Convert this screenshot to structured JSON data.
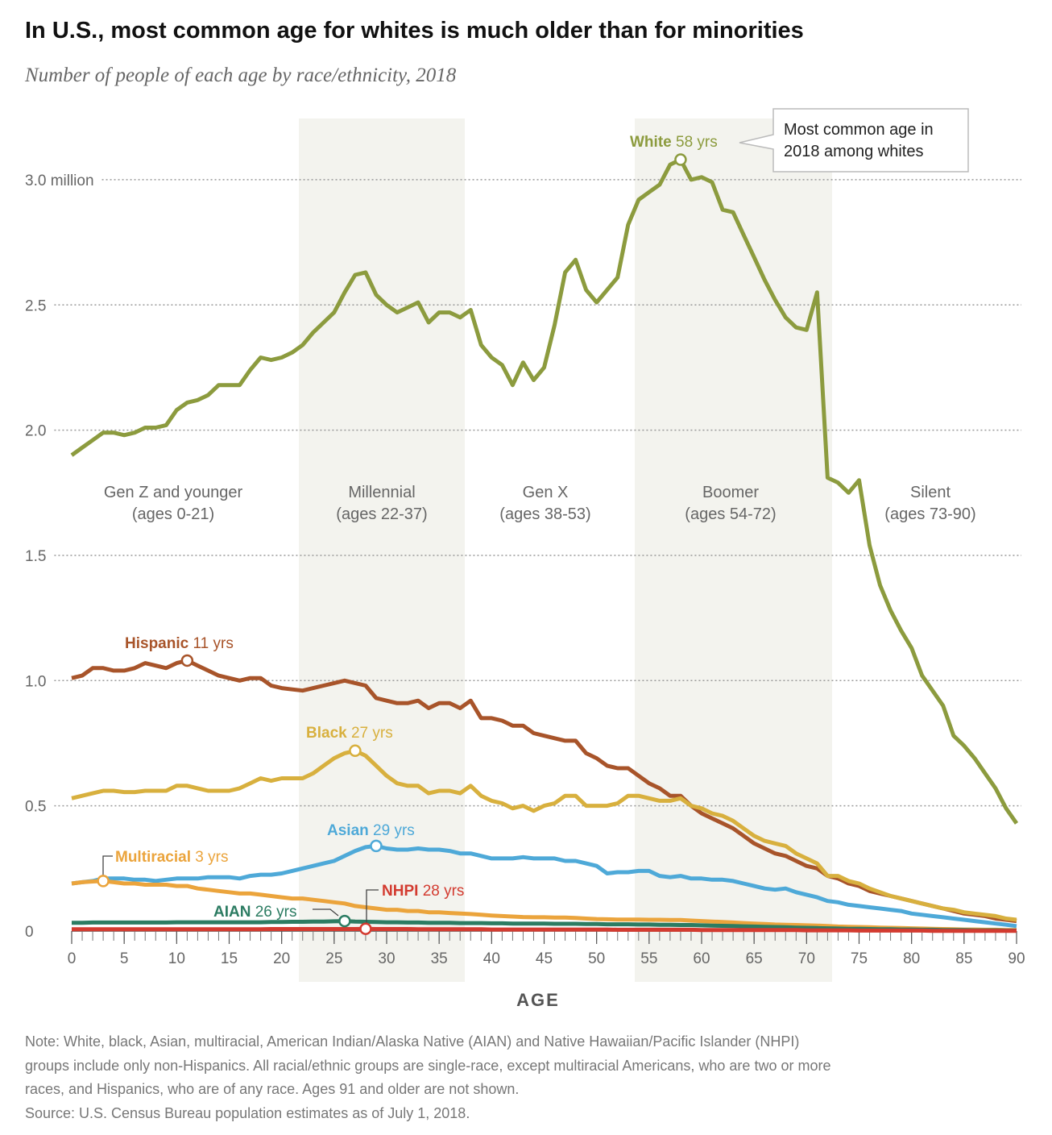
{
  "title": "In U.S., most common age for whites is much older than for minorities",
  "subtitle": "Number of people of each age by race/ethnicity, 2018",
  "chart_data": {
    "type": "line",
    "xlabel": "AGE",
    "xlim": [
      0,
      90
    ],
    "ylim": [
      0,
      3.25
    ],
    "xticks": [
      0,
      5,
      10,
      15,
      20,
      25,
      30,
      35,
      40,
      45,
      50,
      55,
      60,
      65,
      70,
      75,
      80,
      85,
      90
    ],
    "yticks": [
      0,
      0.5,
      {
        "value": 1,
        "label": "1.0"
      },
      1.5,
      {
        "value": 2,
        "label": "2.0"
      },
      2.5,
      {
        "value": 3,
        "label": "3.0 million"
      }
    ],
    "grid": true,
    "x": [
      0,
      1,
      2,
      3,
      4,
      5,
      6,
      7,
      8,
      9,
      10,
      11,
      12,
      13,
      14,
      15,
      16,
      17,
      18,
      19,
      20,
      21,
      22,
      23,
      24,
      25,
      26,
      27,
      28,
      29,
      30,
      31,
      32,
      33,
      34,
      35,
      36,
      37,
      38,
      39,
      40,
      41,
      42,
      43,
      44,
      45,
      46,
      47,
      48,
      49,
      50,
      51,
      52,
      53,
      54,
      55,
      56,
      57,
      58,
      59,
      60,
      61,
      62,
      63,
      64,
      65,
      66,
      67,
      68,
      69,
      70,
      71,
      72,
      73,
      74,
      75,
      76,
      77,
      78,
      79,
      80,
      81,
      82,
      83,
      84,
      85,
      86,
      87,
      88,
      89,
      90
    ],
    "generations": [
      {
        "name": "Gen Z and younger",
        "ages": "(ages 0-21)"
      },
      {
        "name": "Millennial",
        "ages": "(ages 22-37)"
      },
      {
        "name": "Gen X",
        "ages": "(ages 38-53)"
      },
      {
        "name": "Boomer",
        "ages": "(ages 54-72)"
      },
      {
        "name": "Silent",
        "ages": "(ages 73-90)"
      }
    ],
    "callout": [
      "Most common age in",
      "2018 among whites"
    ],
    "series": [
      {
        "name": "White",
        "color": "#8c9b3e",
        "peak": {
          "age": 58,
          "label": "58 yrs"
        },
        "values": [
          1.9,
          1.93,
          1.96,
          1.99,
          1.99,
          1.98,
          1.99,
          2.01,
          2.01,
          2.02,
          2.08,
          2.11,
          2.12,
          2.14,
          2.18,
          2.18,
          2.18,
          2.24,
          2.29,
          2.28,
          2.29,
          2.31,
          2.34,
          2.39,
          2.43,
          2.47,
          2.55,
          2.62,
          2.63,
          2.54,
          2.5,
          2.47,
          2.49,
          2.51,
          2.43,
          2.47,
          2.47,
          2.45,
          2.48,
          2.34,
          2.29,
          2.26,
          2.18,
          2.27,
          2.2,
          2.25,
          2.42,
          2.63,
          2.68,
          2.56,
          2.51,
          2.56,
          2.61,
          2.82,
          2.92,
          2.95,
          2.98,
          3.06,
          3.08,
          3.0,
          3.01,
          2.99,
          2.88,
          2.87,
          2.78,
          2.69,
          2.6,
          2.52,
          2.45,
          2.41,
          2.4,
          2.55,
          1.81,
          1.79,
          1.75,
          1.8,
          1.54,
          1.38,
          1.28,
          1.2,
          1.13,
          1.02,
          0.96,
          0.9,
          0.78,
          0.74,
          0.69,
          0.63,
          0.57,
          0.49,
          0.43
        ]
      },
      {
        "name": "Hispanic",
        "color": "#a8542a",
        "peak": {
          "age": 11,
          "label": "11 yrs"
        },
        "values": [
          1.01,
          1.02,
          1.05,
          1.05,
          1.04,
          1.04,
          1.05,
          1.07,
          1.06,
          1.05,
          1.07,
          1.08,
          1.06,
          1.04,
          1.02,
          1.01,
          1.0,
          1.01,
          1.01,
          0.98,
          0.97,
          0.965,
          0.96,
          0.97,
          0.98,
          0.99,
          1.0,
          0.99,
          0.98,
          0.93,
          0.92,
          0.91,
          0.91,
          0.92,
          0.89,
          0.91,
          0.91,
          0.89,
          0.92,
          0.85,
          0.85,
          0.84,
          0.82,
          0.82,
          0.79,
          0.78,
          0.77,
          0.76,
          0.76,
          0.71,
          0.69,
          0.66,
          0.65,
          0.65,
          0.62,
          0.59,
          0.57,
          0.54,
          0.54,
          0.5,
          0.47,
          0.45,
          0.43,
          0.41,
          0.38,
          0.35,
          0.33,
          0.31,
          0.3,
          0.28,
          0.26,
          0.25,
          0.22,
          0.21,
          0.19,
          0.18,
          0.16,
          0.15,
          0.14,
          0.13,
          0.12,
          0.11,
          0.1,
          0.09,
          0.08,
          0.07,
          0.065,
          0.06,
          0.05,
          0.045,
          0.04
        ]
      },
      {
        "name": "Black",
        "color": "#d8b03e",
        "peak": {
          "age": 27,
          "label": "27 yrs"
        },
        "values": [
          0.53,
          0.54,
          0.55,
          0.56,
          0.56,
          0.555,
          0.555,
          0.56,
          0.56,
          0.56,
          0.58,
          0.58,
          0.57,
          0.56,
          0.56,
          0.56,
          0.57,
          0.59,
          0.61,
          0.6,
          0.61,
          0.61,
          0.61,
          0.63,
          0.66,
          0.69,
          0.71,
          0.72,
          0.7,
          0.66,
          0.62,
          0.59,
          0.58,
          0.58,
          0.55,
          0.56,
          0.56,
          0.55,
          0.58,
          0.54,
          0.52,
          0.51,
          0.49,
          0.5,
          0.48,
          0.5,
          0.51,
          0.54,
          0.54,
          0.5,
          0.5,
          0.5,
          0.51,
          0.54,
          0.54,
          0.53,
          0.52,
          0.52,
          0.53,
          0.5,
          0.49,
          0.47,
          0.46,
          0.44,
          0.41,
          0.38,
          0.36,
          0.35,
          0.34,
          0.31,
          0.29,
          0.27,
          0.22,
          0.22,
          0.2,
          0.19,
          0.17,
          0.155,
          0.14,
          0.13,
          0.12,
          0.11,
          0.1,
          0.09,
          0.085,
          0.075,
          0.07,
          0.065,
          0.06,
          0.05,
          0.045
        ]
      },
      {
        "name": "Asian",
        "color": "#4ea9d8",
        "peak": {
          "age": 29,
          "label": "29 yrs"
        },
        "values": [
          0.19,
          0.195,
          0.2,
          0.21,
          0.21,
          0.21,
          0.205,
          0.205,
          0.2,
          0.205,
          0.21,
          0.21,
          0.21,
          0.215,
          0.215,
          0.215,
          0.21,
          0.22,
          0.225,
          0.225,
          0.23,
          0.24,
          0.25,
          0.26,
          0.27,
          0.28,
          0.3,
          0.32,
          0.335,
          0.34,
          0.33,
          0.325,
          0.325,
          0.33,
          0.325,
          0.325,
          0.32,
          0.31,
          0.31,
          0.3,
          0.29,
          0.29,
          0.29,
          0.295,
          0.29,
          0.29,
          0.29,
          0.28,
          0.28,
          0.27,
          0.26,
          0.23,
          0.235,
          0.235,
          0.24,
          0.24,
          0.22,
          0.215,
          0.22,
          0.21,
          0.21,
          0.205,
          0.205,
          0.2,
          0.19,
          0.18,
          0.17,
          0.165,
          0.17,
          0.155,
          0.145,
          0.135,
          0.12,
          0.115,
          0.105,
          0.1,
          0.095,
          0.09,
          0.085,
          0.08,
          0.07,
          0.065,
          0.06,
          0.055,
          0.05,
          0.045,
          0.04,
          0.035,
          0.03,
          0.025,
          0.02
        ]
      },
      {
        "name": "Multiracial",
        "color": "#eba43c",
        "peak": {
          "age": 3,
          "label": "3 yrs"
        },
        "values": [
          0.19,
          0.195,
          0.198,
          0.2,
          0.195,
          0.19,
          0.19,
          0.185,
          0.185,
          0.185,
          0.18,
          0.18,
          0.17,
          0.165,
          0.16,
          0.155,
          0.15,
          0.15,
          0.145,
          0.14,
          0.135,
          0.13,
          0.13,
          0.125,
          0.12,
          0.115,
          0.11,
          0.1,
          0.095,
          0.09,
          0.085,
          0.085,
          0.08,
          0.08,
          0.075,
          0.075,
          0.072,
          0.07,
          0.068,
          0.065,
          0.062,
          0.06,
          0.058,
          0.056,
          0.055,
          0.055,
          0.054,
          0.054,
          0.052,
          0.05,
          0.048,
          0.047,
          0.046,
          0.046,
          0.046,
          0.045,
          0.045,
          0.044,
          0.044,
          0.042,
          0.04,
          0.038,
          0.036,
          0.034,
          0.032,
          0.03,
          0.028,
          0.026,
          0.025,
          0.024,
          0.023,
          0.022,
          0.02,
          0.018,
          0.017,
          0.016,
          0.015,
          0.014,
          0.013,
          0.012,
          0.011,
          0.01,
          0.009,
          0.008,
          0.007,
          0.006,
          0.006,
          0.005,
          0.005,
          0.004,
          0.004
        ]
      },
      {
        "name": "AIAN",
        "color": "#2c7c62",
        "peak": {
          "age": 26,
          "label": "26 yrs"
        },
        "values": [
          0.033,
          0.033,
          0.034,
          0.034,
          0.034,
          0.034,
          0.034,
          0.034,
          0.034,
          0.034,
          0.035,
          0.035,
          0.035,
          0.035,
          0.035,
          0.035,
          0.035,
          0.035,
          0.035,
          0.036,
          0.036,
          0.037,
          0.037,
          0.038,
          0.038,
          0.039,
          0.04,
          0.038,
          0.037,
          0.036,
          0.035,
          0.035,
          0.034,
          0.034,
          0.033,
          0.033,
          0.033,
          0.032,
          0.032,
          0.032,
          0.031,
          0.031,
          0.03,
          0.03,
          0.03,
          0.03,
          0.029,
          0.029,
          0.029,
          0.028,
          0.028,
          0.027,
          0.027,
          0.027,
          0.026,
          0.026,
          0.025,
          0.025,
          0.024,
          0.024,
          0.023,
          0.022,
          0.021,
          0.02,
          0.019,
          0.018,
          0.017,
          0.016,
          0.015,
          0.014,
          0.013,
          0.012,
          0.011,
          0.01,
          0.009,
          0.009,
          0.008,
          0.007,
          0.007,
          0.006,
          0.006,
          0.005,
          0.005,
          0.004,
          0.004,
          0.004,
          0.003,
          0.003,
          0.003,
          0.002,
          0.002
        ]
      },
      {
        "name": "NHPI",
        "color": "#d33b30",
        "peak": {
          "age": 28,
          "label": "28 yrs"
        },
        "values": [
          0.007,
          0.007,
          0.007,
          0.007,
          0.007,
          0.007,
          0.007,
          0.007,
          0.007,
          0.007,
          0.007,
          0.007,
          0.007,
          0.007,
          0.007,
          0.007,
          0.007,
          0.007,
          0.007,
          0.008,
          0.008,
          0.008,
          0.008,
          0.008,
          0.008,
          0.008,
          0.008,
          0.008,
          0.009,
          0.008,
          0.008,
          0.008,
          0.008,
          0.007,
          0.007,
          0.007,
          0.007,
          0.007,
          0.007,
          0.007,
          0.006,
          0.006,
          0.006,
          0.006,
          0.006,
          0.006,
          0.006,
          0.006,
          0.006,
          0.006,
          0.006,
          0.006,
          0.005,
          0.005,
          0.005,
          0.005,
          0.005,
          0.005,
          0.005,
          0.005,
          0.004,
          0.004,
          0.004,
          0.004,
          0.004,
          0.004,
          0.004,
          0.004,
          0.004,
          0.004,
          0.003,
          0.003,
          0.003,
          0.003,
          0.003,
          0.002,
          0.002,
          0.002,
          0.002,
          0.002,
          0.002,
          0.002,
          0.001,
          0.001,
          0.001,
          0.001,
          0.001,
          0.001,
          0.001,
          0.001,
          0.001
        ]
      }
    ]
  },
  "note": [
    "Note: White, black, Asian, multiracial, American Indian/Alaska Native (AIAN) and Native Hawaiian/Pacific Islander (NHPI)",
    "groups include only non-Hispanics. All racial/ethnic groups are single-race, except multiracial Americans, who are two or more",
    "races, and Hispanics, who are of any race. Ages 91 and older are not shown."
  ],
  "source": "Source: U.S. Census Bureau population estimates as of July 1, 2018."
}
